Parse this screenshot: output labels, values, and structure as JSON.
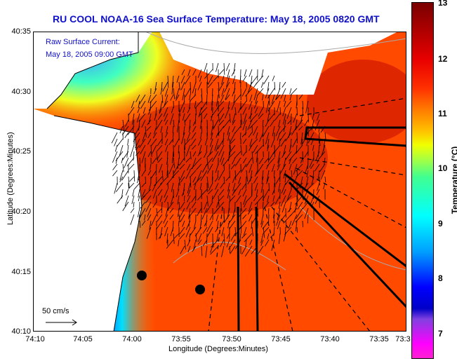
{
  "title": "RU COOL  NOAA-16  Sea Surface Temperature:  May 18, 2005 0820 GMT",
  "annotation": {
    "line1": "Raw Surface Current:",
    "line2": "May 18, 2005 09:00 GMT"
  },
  "scale_label": "50 cm/s",
  "x_axis": {
    "label": "Longitude (Degrees:Minutes)",
    "ticks": [
      "74:10",
      "74:05",
      "74:00",
      "73:55",
      "73:50",
      "73:45",
      "73:40",
      "73:35",
      "73:3"
    ]
  },
  "y_axis": {
    "label": "Latitude (Degrees:Minutes)",
    "ticks": [
      "40:35",
      "40:30",
      "40:25",
      "40:20",
      "40:15",
      "40:10"
    ]
  },
  "colorbar": {
    "title": "Temperature (°C)",
    "ticks": [
      "13",
      "12",
      "11",
      "10",
      "9",
      "8",
      "7"
    ],
    "range": [
      6.6,
      13
    ]
  },
  "colors": {
    "title": "#1010c8",
    "ocean_warm": "#ff4a00",
    "coastal_cold": "#00c8ff",
    "land": "#ffffff"
  }
}
